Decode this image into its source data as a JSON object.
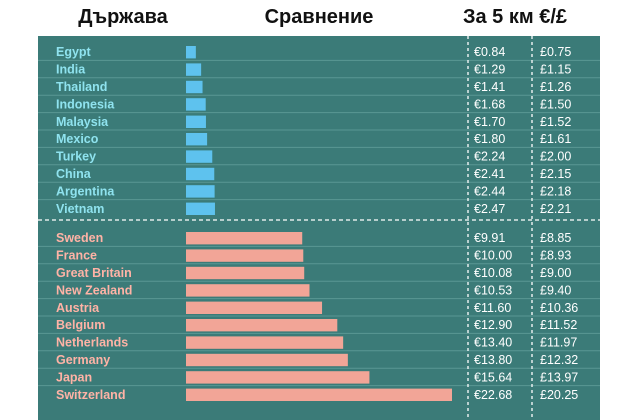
{
  "header": {
    "country": "Държава",
    "comparison": "Сравнение",
    "per5km": "За 5 км €/£"
  },
  "colors": {
    "panel": "#3b7b78",
    "cheap_bar": "#5ec2ee",
    "expensive_bar": "#f2a597"
  },
  "chart_data": {
    "type": "bar",
    "title": "",
    "xlabel": "Сравнение",
    "ylabel": "Държава",
    "categories": [
      "Egypt",
      "India",
      "Thailand",
      "Indonesia",
      "Malaysia",
      "Mexico",
      "Turkey",
      "China",
      "Argentina",
      "Vietnam",
      "Sweden",
      "France",
      "Great Britain",
      "New Zealand",
      "Austria",
      "Belgium",
      "Netherlands",
      "Germany",
      "Japan",
      "Switzerland"
    ],
    "series": [
      {
        "name": "€",
        "values": [
          0.84,
          1.29,
          1.41,
          1.68,
          1.7,
          1.8,
          2.24,
          2.41,
          2.44,
          2.47,
          9.91,
          10.0,
          10.08,
          10.53,
          11.6,
          12.9,
          13.4,
          13.8,
          15.64,
          22.68
        ]
      },
      {
        "name": "£",
        "values": [
          0.75,
          1.15,
          1.26,
          1.5,
          1.52,
          1.61,
          2.0,
          2.15,
          2.18,
          2.21,
          8.85,
          8.93,
          9.0,
          9.4,
          10.36,
          11.52,
          11.97,
          12.32,
          13.97,
          20.25
        ]
      }
    ],
    "labels_eur": [
      "€0.84",
      "€1.29",
      "€1.41",
      "€1.68",
      "€1.70",
      "€1.80",
      "€2.24",
      "€2.41",
      "€2.44",
      "€2.47",
      "€9.91",
      "€10.00",
      "€10.08",
      "€10.53",
      "€11.60",
      "€12.90",
      "€13.40",
      "€13.80",
      "€15.64",
      "€22.68"
    ],
    "labels_gbp": [
      "£0.75",
      "£1.15",
      "£1.26",
      "£1.50",
      "£1.52",
      "£1.61",
      "£2.00",
      "£2.15",
      "£2.18",
      "£2.21",
      "£8.85",
      "£8.93",
      "£9.00",
      "£9.40",
      "£10.36",
      "£11.52",
      "£11.97",
      "£12.32",
      "£13.97",
      "£20.25"
    ],
    "groups": [
      {
        "name": "cheap",
        "count": 10
      },
      {
        "name": "expensive",
        "count": 10
      }
    ],
    "xlim": [
      0,
      22.68
    ]
  }
}
